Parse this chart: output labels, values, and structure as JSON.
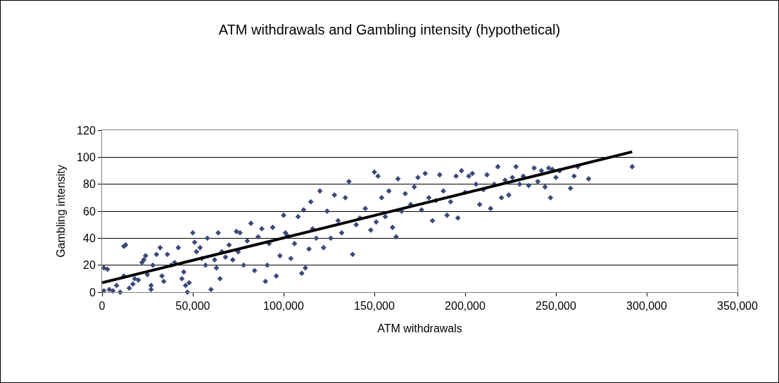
{
  "chart_data": {
    "type": "scatter",
    "title": "ATM withdrawals and Gambling intensity (hypothetical)",
    "xlabel": "ATM withdrawals",
    "ylabel": "Gambling intensity",
    "xlim": [
      0,
      350000
    ],
    "xticks": [
      {
        "value": 0,
        "label": "0"
      },
      {
        "value": 50000,
        "label": "50,000"
      },
      {
        "value": 100000,
        "label": "100,000"
      },
      {
        "value": 150000,
        "label": "150,000"
      },
      {
        "value": 200000,
        "label": "200,000"
      },
      {
        "value": 250000,
        "label": "250,000"
      },
      {
        "value": 300000,
        "label": "300,000"
      },
      {
        "value": 350000,
        "label": "350,000"
      }
    ],
    "ylim": [
      0,
      120
    ],
    "yticks": [
      0,
      20,
      40,
      60,
      80,
      100,
      120
    ],
    "grid": "y",
    "marker": "diamond",
    "series": [
      {
        "color": "#3b4a7a",
        "x": [
          1000,
          3000,
          1000,
          4000,
          6000,
          8000,
          10000,
          12000,
          12000,
          13000,
          15000,
          17000,
          18000,
          20000,
          22000,
          23000,
          24000,
          25000,
          27000,
          27000,
          28000,
          30000,
          32000,
          33000,
          34000,
          36000,
          38000,
          40000,
          42000,
          44000,
          45000,
          46000,
          47000,
          48000,
          50000,
          51000,
          52000,
          54000,
          55000,
          57000,
          58000,
          60000,
          62000,
          63000,
          64000,
          65000,
          66000,
          68000,
          70000,
          72000,
          74000,
          75000,
          76000,
          78000,
          80000,
          82000,
          84000,
          86000,
          88000,
          90000,
          91000,
          92000,
          94000,
          96000,
          98000,
          100000,
          101000,
          102000,
          104000,
          106000,
          108000,
          110000,
          111000,
          112000,
          114000,
          115000,
          116000,
          118000,
          120000,
          122000,
          124000,
          126000,
          128000,
          130000,
          132000,
          134000,
          136000,
          138000,
          140000,
          142000,
          145000,
          148000,
          150000,
          151000,
          152000,
          154000,
          156000,
          158000,
          160000,
          162000,
          163000,
          165000,
          167000,
          170000,
          172000,
          174000,
          176000,
          178000,
          180000,
          182000,
          184000,
          186000,
          188000,
          190000,
          192000,
          195000,
          196000,
          198000,
          200000,
          202000,
          204000,
          206000,
          208000,
          210000,
          212000,
          214000,
          216000,
          218000,
          220000,
          222000,
          224000,
          226000,
          228000,
          230000,
          232000,
          235000,
          238000,
          240000,
          242000,
          244000,
          246000,
          247000,
          248000,
          250000,
          252000,
          258000,
          260000,
          262000,
          268000,
          292000
        ],
        "values": [
          18,
          17,
          1,
          2,
          1,
          5,
          0,
          12,
          34,
          35,
          3,
          6,
          10,
          9,
          22,
          24,
          27,
          13,
          2,
          5,
          20,
          28,
          33,
          12,
          8,
          28,
          20,
          22,
          33,
          10,
          15,
          5,
          0,
          7,
          44,
          37,
          30,
          33,
          25,
          20,
          40,
          2,
          24,
          18,
          44,
          10,
          30,
          26,
          35,
          24,
          45,
          30,
          44,
          20,
          38,
          51,
          16,
          41,
          47,
          8,
          20,
          36,
          48,
          12,
          27,
          57,
          44,
          42,
          25,
          36,
          56,
          14,
          61,
          18,
          32,
          67,
          47,
          40,
          75,
          33,
          60,
          40,
          72,
          53,
          44,
          70,
          82,
          28,
          50,
          55,
          62,
          46,
          89,
          52,
          86,
          70,
          56,
          75,
          48,
          41,
          84,
          60,
          73,
          65,
          78,
          85,
          61,
          88,
          70,
          53,
          68,
          87,
          75,
          57,
          67,
          86,
          55,
          90,
          74,
          86,
          88,
          80,
          65,
          76,
          87,
          62,
          80,
          93,
          70,
          83,
          72,
          85,
          93,
          80,
          86,
          79,
          92,
          82,
          90,
          78,
          92,
          70,
          91,
          85,
          90,
          77,
          86,
          93,
          84,
          93
        ]
      },
      {
        "type": "line",
        "color": "#000000",
        "marker": "none",
        "line_style": "solid",
        "x": [
          0,
          292000
        ],
        "values": [
          7,
          104
        ]
      }
    ]
  }
}
